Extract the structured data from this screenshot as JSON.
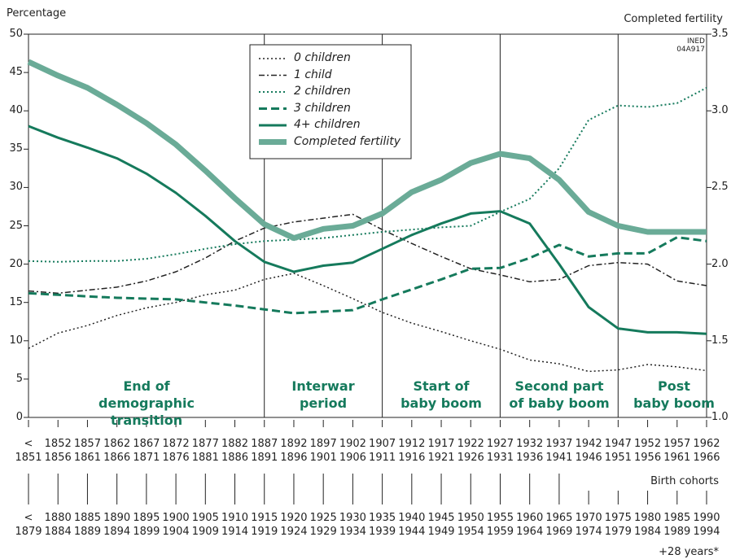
{
  "chart_data": {
    "type": "line",
    "y_label": "Percentage",
    "y2_label": "Completed fertility",
    "source_code": "INED\n04A917",
    "categories": [
      "<\n1851",
      "1852\n1856",
      "1857\n1861",
      "1862\n1866",
      "1867\n1871",
      "1872\n1876",
      "1877\n1881",
      "1882\n1886",
      "1887\n1891",
      "1892\n1896",
      "1897\n1901",
      "1902\n1906",
      "1907\n1911",
      "1912\n1916",
      "1917\n1921",
      "1922\n1926",
      "1927\n1931",
      "1932\n1936",
      "1937\n1941",
      "1942\n1946",
      "1947\n1951",
      "1952\n1956",
      "1957\n1961",
      "1962\n1966"
    ],
    "categories_2_label": "Birth cohorts",
    "categories_2": [
      "<\n1879",
      "1880\n1884",
      "1885\n1889",
      "1890\n1894",
      "1895\n1899",
      "1900\n1904",
      "1905\n1909",
      "1910\n1914",
      "1915\n1919",
      "1920\n1924",
      "1925\n1929",
      "1930\n1934",
      "1935\n1939",
      "1940\n1944",
      "1945\n1949",
      "1950\n1954",
      "1955\n1959",
      "1960\n1964",
      "1965\n1969",
      "1970\n1974",
      "1975\n1979",
      "1980\n1984",
      "1985\n1989",
      "1990\n1994"
    ],
    "categories_2_note": "+28 years*",
    "periods": [
      "End of demographic\ntransition",
      "Interwar\nperiod",
      "Start of\nbaby boom",
      "Second part\nof baby boom",
      "Post\nbaby boom"
    ],
    "ylim": [
      0,
      50
    ],
    "yticks": [
      0,
      5,
      10,
      15,
      20,
      25,
      30,
      35,
      40,
      45,
      50
    ],
    "y2lim": [
      1.0,
      3.5
    ],
    "y2ticks": [
      {
        "value": 1,
        "label": "1.0"
      },
      1.5,
      {
        "value": 2,
        "label": "2.0"
      },
      2.5,
      {
        "value": 3,
        "label": "3.0"
      },
      3.5
    ],
    "series": [
      {
        "name": "0 children",
        "color": "#222222",
        "line_style": "dotted",
        "width": 1.5,
        "values": [
          9,
          11,
          12,
          13.3,
          14.3,
          15,
          16,
          16.6,
          18,
          18.8,
          17.2,
          15.5,
          13.7,
          12.3,
          11.2,
          10,
          8.9,
          7.5,
          7,
          6,
          6.2,
          6.9,
          6.6,
          6.1
        ]
      },
      {
        "name": "1 child",
        "color": "#222222",
        "line_style": "dashdot",
        "width": 1.5,
        "values": [
          16.5,
          16.2,
          16.6,
          17,
          17.8,
          19,
          20.8,
          23,
          24.7,
          25.5,
          26,
          26.5,
          24.5,
          22.7,
          21,
          19.4,
          18.6,
          17.7,
          18,
          19.8,
          20.2,
          20,
          17.8,
          17.2
        ]
      },
      {
        "name": "2 children",
        "color": "#157a5c",
        "line_style": "dotted",
        "width": 2,
        "values": [
          20.4,
          20.3,
          20.4,
          20.4,
          20.7,
          21.3,
          22,
          22.6,
          23,
          23.2,
          23.4,
          23.8,
          24.2,
          24.5,
          24.8,
          25,
          26.8,
          28.5,
          32.5,
          38.8,
          40.7,
          40.5,
          41,
          43
        ]
      },
      {
        "name": "3 children",
        "color": "#157a5c",
        "line_style": "dashed",
        "width": 3,
        "values": [
          16.2,
          16,
          15.8,
          15.6,
          15.5,
          15.4,
          15,
          14.6,
          14.1,
          13.6,
          13.8,
          14,
          15.4,
          16.7,
          18,
          19.4,
          19.5,
          20.8,
          22.5,
          21,
          21.4,
          21.4,
          23.5,
          23
        ]
      },
      {
        "name": "4+ children",
        "color": "#157a5c",
        "line_style": "solid",
        "width": 3,
        "values": [
          38,
          36.5,
          35.2,
          33.8,
          31.8,
          29.3,
          26.3,
          23,
          20.3,
          19,
          19.8,
          20.2,
          22,
          23.8,
          25.3,
          26.6,
          26.9,
          25.3,
          20,
          14.4,
          11.6,
          11.1,
          11.1,
          10.9
        ]
      },
      {
        "name": "Completed fertility",
        "color": "#6aab97",
        "line_style": "solid",
        "width": 7,
        "axis": "y2",
        "values": [
          3.32,
          3.23,
          3.15,
          3.04,
          2.92,
          2.78,
          2.61,
          2.43,
          2.26,
          2.17,
          2.23,
          2.25,
          2.33,
          2.47,
          2.55,
          2.66,
          2.72,
          2.69,
          2.55,
          2.34,
          2.25,
          2.21,
          2.21,
          2.21
        ]
      }
    ]
  }
}
